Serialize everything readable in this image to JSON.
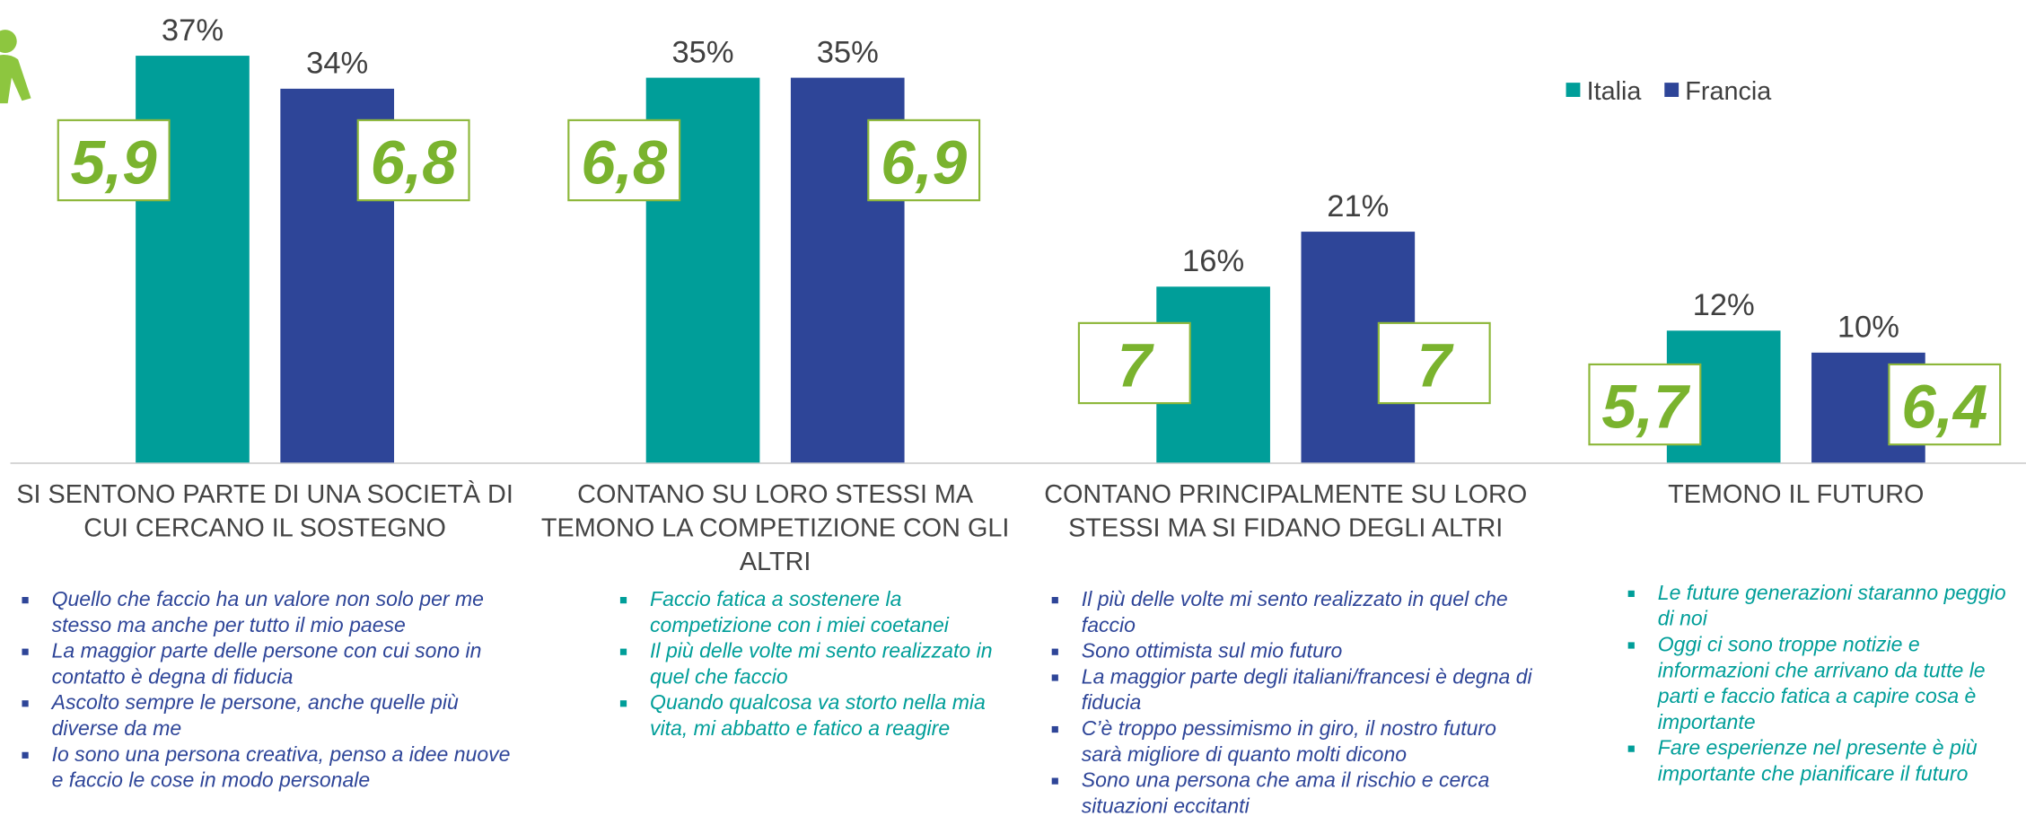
{
  "chart_data": {
    "type": "bar",
    "categories": [
      "SI SENTONO PARTE DI UNA SOCIETÀ DI CUI CERCANO IL SOSTEGNO",
      "CONTANO SU LORO STESSI MA TEMONO LA COMPETIZIONE CON GLI ALTRI",
      "CONTANO PRINCIPALMENTE SU LORO STESSI MA SI FIDANO DEGLI ALTRI",
      "TEMONO IL FUTURO"
    ],
    "series": [
      {
        "name": "Italia",
        "color": "#009e99",
        "values": [
          37,
          35,
          16,
          12
        ],
        "value_labels": [
          "37%",
          "35%",
          "16%",
          "12%"
        ],
        "scores": [
          "5,9",
          "6,8",
          "7",
          "5,7"
        ]
      },
      {
        "name": "Francia",
        "color": "#2e4598",
        "values": [
          34,
          35,
          21,
          10
        ],
        "value_labels": [
          "34%",
          "35%",
          "21%",
          "10%"
        ],
        "scores": [
          "6,8",
          "6,9",
          "7",
          "6,4"
        ]
      }
    ],
    "legend": "top-right",
    "notes": [
      {
        "color": "#2e4598",
        "items": [
          "Quello che faccio ha un valore non solo per me stesso ma anche per tutto il mio paese",
          "La maggior parte delle persone con cui sono in contatto è degna di fiducia",
          "Ascolto sempre le persone, anche quelle più diverse da me",
          "Io sono una persona creativa, penso a idee nuove e faccio le cose in modo personale"
        ]
      },
      {
        "color": "#009e99",
        "items": [
          "Faccio fatica a sostenere la competizione con i miei coetanei",
          "Il più delle volte mi sento realizzato in quel che faccio",
          "Quando qualcosa va storto nella mia vita, mi abbatto e fatico a reagire"
        ]
      },
      {
        "color": "#2e4598",
        "items": [
          "Il più delle volte mi sento realizzato in quel che faccio",
          "Sono ottimista sul mio futuro",
          "La maggior parte degli italiani/francesi è degna di fiducia",
          "C’è troppo pessimismo in giro, il nostro futuro sarà migliore di quanto molti dicono",
          "Sono una persona che ama il rischio e cerca situazioni eccitanti"
        ]
      },
      {
        "color": "#009e99",
        "items": [
          "Le future generazioni staranno peggio di noi",
          "Oggi ci sono troppe notizie e informazioni che arrivano da tutte le parti e faccio fatica a capire cosa è importante",
          "Fare esperienze nel presente è più importante che pianificare il futuro"
        ]
      }
    ]
  }
}
